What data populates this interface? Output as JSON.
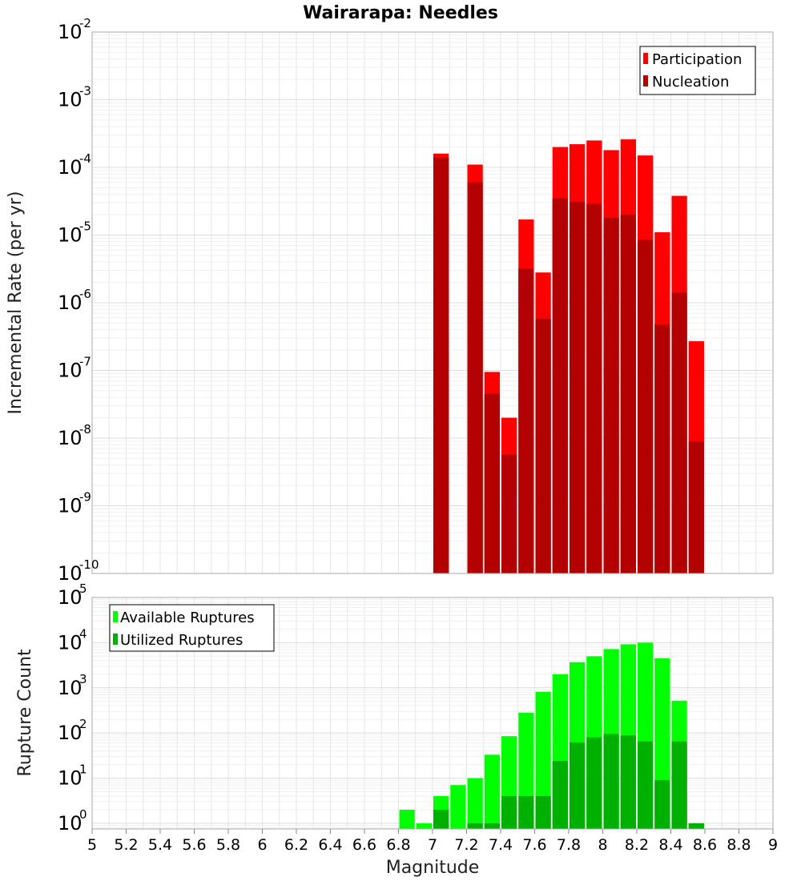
{
  "chart_data": [
    {
      "type": "bar",
      "title": "Wairarapa: Needles",
      "ylabel": "Incremental Rate (per yr)",
      "xlabel": "",
      "xlim": [
        5,
        9
      ],
      "ylim": [
        1e-10,
        0.01
      ],
      "yscale": "log",
      "y_tick_exponents": [
        -10,
        -9,
        -8,
        -7,
        -6,
        -5,
        -4,
        -3,
        -2
      ],
      "grid": true,
      "legend": "top-right",
      "colors": {
        "Participation": "#ff0000",
        "Nucleation": "#b30000"
      },
      "x": [
        7.05,
        7.25,
        7.35,
        7.45,
        7.55,
        7.65,
        7.75,
        7.85,
        7.95,
        8.05,
        8.15,
        8.25,
        8.35,
        8.45,
        8.55
      ],
      "series": [
        {
          "name": "Participation",
          "values": [
            0.00016,
            0.00011,
            9.5e-08,
            2e-08,
            1.7e-05,
            2.8e-06,
            0.0002,
            0.00022,
            0.00025,
            0.00018,
            0.00026,
            0.00015,
            1.1e-05,
            3.8e-05,
            2.7e-07
          ]
        },
        {
          "name": "Nucleation",
          "values": [
            0.00014,
            6e-05,
            4.5e-08,
            5.7e-09,
            3.2e-06,
            5.8e-07,
            3.5e-05,
            3.1e-05,
            2.9e-05,
            1.8e-05,
            2e-05,
            8.5e-06,
            4.8e-07,
            1.4e-06,
            9e-09
          ]
        }
      ]
    },
    {
      "type": "bar",
      "title": "",
      "ylabel": "Rupture Count",
      "xlabel": "Magnitude",
      "xlim": [
        5,
        9
      ],
      "ylim": [
        0.75,
        100000
      ],
      "yscale": "log",
      "y_tick_exponents": [
        0,
        1,
        2,
        3,
        4,
        5
      ],
      "x_ticks": [
        "5",
        "5.2",
        "5.4",
        "5.6",
        "5.8",
        "6",
        "6.2",
        "6.4",
        "6.6",
        "6.8",
        "7",
        "7.2",
        "7.4",
        "7.6",
        "7.8",
        "8",
        "8.2",
        "8.4",
        "8.6",
        "8.8",
        "9"
      ],
      "grid": true,
      "legend": "top-left",
      "colors": {
        "Available Ruptures": "#00ff00",
        "Utilized Ruptures": "#00b000"
      },
      "x": [
        6.85,
        6.95,
        7.05,
        7.15,
        7.25,
        7.35,
        7.45,
        7.55,
        7.65,
        7.75,
        7.85,
        7.95,
        8.05,
        8.15,
        8.25,
        8.35,
        8.45,
        8.55
      ],
      "series": [
        {
          "name": "Available Ruptures",
          "values": [
            2,
            1,
            4,
            7,
            10,
            33,
            85,
            280,
            820,
            2000,
            3700,
            5000,
            7200,
            9200,
            10000,
            4500,
            520,
            1
          ]
        },
        {
          "name": "Utilized Ruptures",
          "values": [
            null,
            null,
            2,
            null,
            1,
            1,
            4,
            4,
            4,
            24,
            62,
            80,
            95,
            88,
            65,
            9,
            65,
            1
          ]
        }
      ]
    }
  ]
}
